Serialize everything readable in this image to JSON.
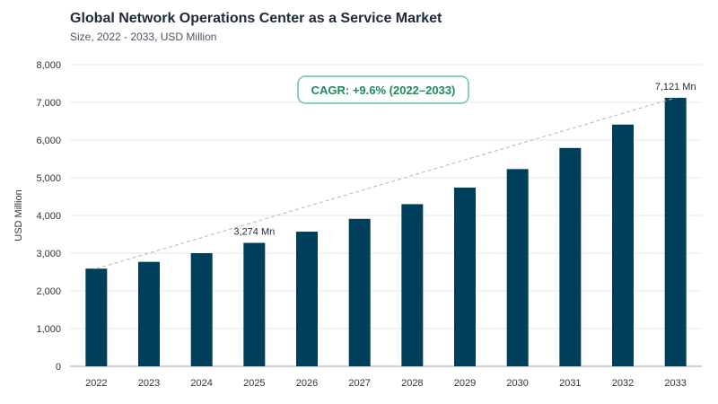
{
  "header": {
    "title": "Global Network Operations Center as a Service Market",
    "subtitle": "Size, 2022 - 2033, USD Million"
  },
  "cagr_badge": "CAGR: +9.6% (2022–2033)",
  "colors": {
    "bar": "#003f5c",
    "badge_border": "#6cc3a0",
    "badge_text": "#1f8a5b",
    "trend_line": "#b5b5b5",
    "grid": "#e5e7eb",
    "axis_text": "#333333"
  },
  "chart_data": {
    "type": "bar",
    "categories": [
      "2022",
      "2023",
      "2024",
      "2025",
      "2026",
      "2027",
      "2028",
      "2029",
      "2030",
      "2031",
      "2032",
      "2033"
    ],
    "values": [
      2590,
      2770,
      3000,
      3274,
      3570,
      3910,
      4300,
      4740,
      5230,
      5790,
      6410,
      7121
    ],
    "ylabel": "USD Million",
    "xlabel": "",
    "ylim": [
      0,
      8000
    ],
    "yticks": [
      0,
      1000,
      2000,
      3000,
      4000,
      5000,
      6000,
      7000,
      8000
    ],
    "ytick_labels": [
      "0",
      "1,000",
      "2,000",
      "3,000",
      "4,000",
      "5,000",
      "6,000",
      "7,000",
      "8,000"
    ],
    "grid": true,
    "data_labels": [
      {
        "category": "2025",
        "text": "3,274 Mn"
      },
      {
        "category": "2033",
        "text": "7,121 Mn"
      }
    ],
    "trend_line": {
      "from": "2022",
      "to": "2033",
      "style": "dashed"
    }
  }
}
